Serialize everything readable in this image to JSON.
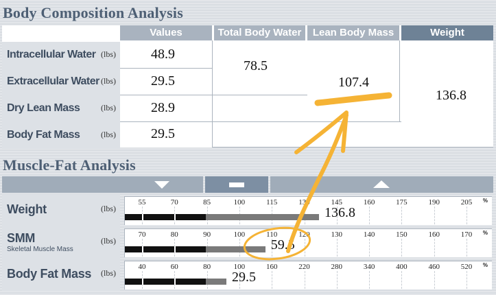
{
  "body_composition": {
    "title": "Body Composition Analysis",
    "headers": {
      "values": "Values",
      "total_body_water": "Total Body Water",
      "lean_body_mass": "Lean Body Mass",
      "weight": "Weight"
    },
    "rows": [
      {
        "label": "Intracellular Water",
        "unit": "(lbs)",
        "value": "48.9"
      },
      {
        "label": "Extracellular Water",
        "unit": "(lbs)",
        "value": "29.5"
      },
      {
        "label": "Dry Lean Mass",
        "unit": "(lbs)",
        "value": "28.9"
      },
      {
        "label": "Body Fat Mass",
        "unit": "(lbs)",
        "value": "29.5"
      }
    ],
    "total_body_water": "78.5",
    "lean_body_mass": "107.4",
    "weight": "136.8"
  },
  "muscle_fat": {
    "title": "Muscle-Fat Analysis",
    "rows": [
      {
        "label": "Weight",
        "sub": "",
        "unit": "(lbs)",
        "value": "136.8",
        "ticks": [
          "55",
          "70",
          "85",
          "100",
          "115",
          "130",
          "145",
          "160",
          "175",
          "190",
          "205"
        ],
        "percent_sign": "%",
        "percent_of_normal": 136.8
      },
      {
        "label": "SMM",
        "sub": "Skeletal Muscle Mass",
        "unit": "(lbs)",
        "value": "59.5",
        "ticks": [
          "70",
          "80",
          "90",
          "100",
          "110",
          "120",
          "130",
          "140",
          "150",
          "160",
          "170"
        ],
        "percent_sign": "%",
        "percent_of_normal": 108
      },
      {
        "label": "Body Fat Mass",
        "sub": "",
        "unit": "(lbs)",
        "value": "29.5",
        "ticks": [
          "40",
          "60",
          "80",
          "100",
          "160",
          "220",
          "280",
          "340",
          "400",
          "460",
          "520"
        ],
        "percent_sign": "%",
        "percent_of_normal": 92
      }
    ]
  },
  "annotation_color": "#f5b335"
}
